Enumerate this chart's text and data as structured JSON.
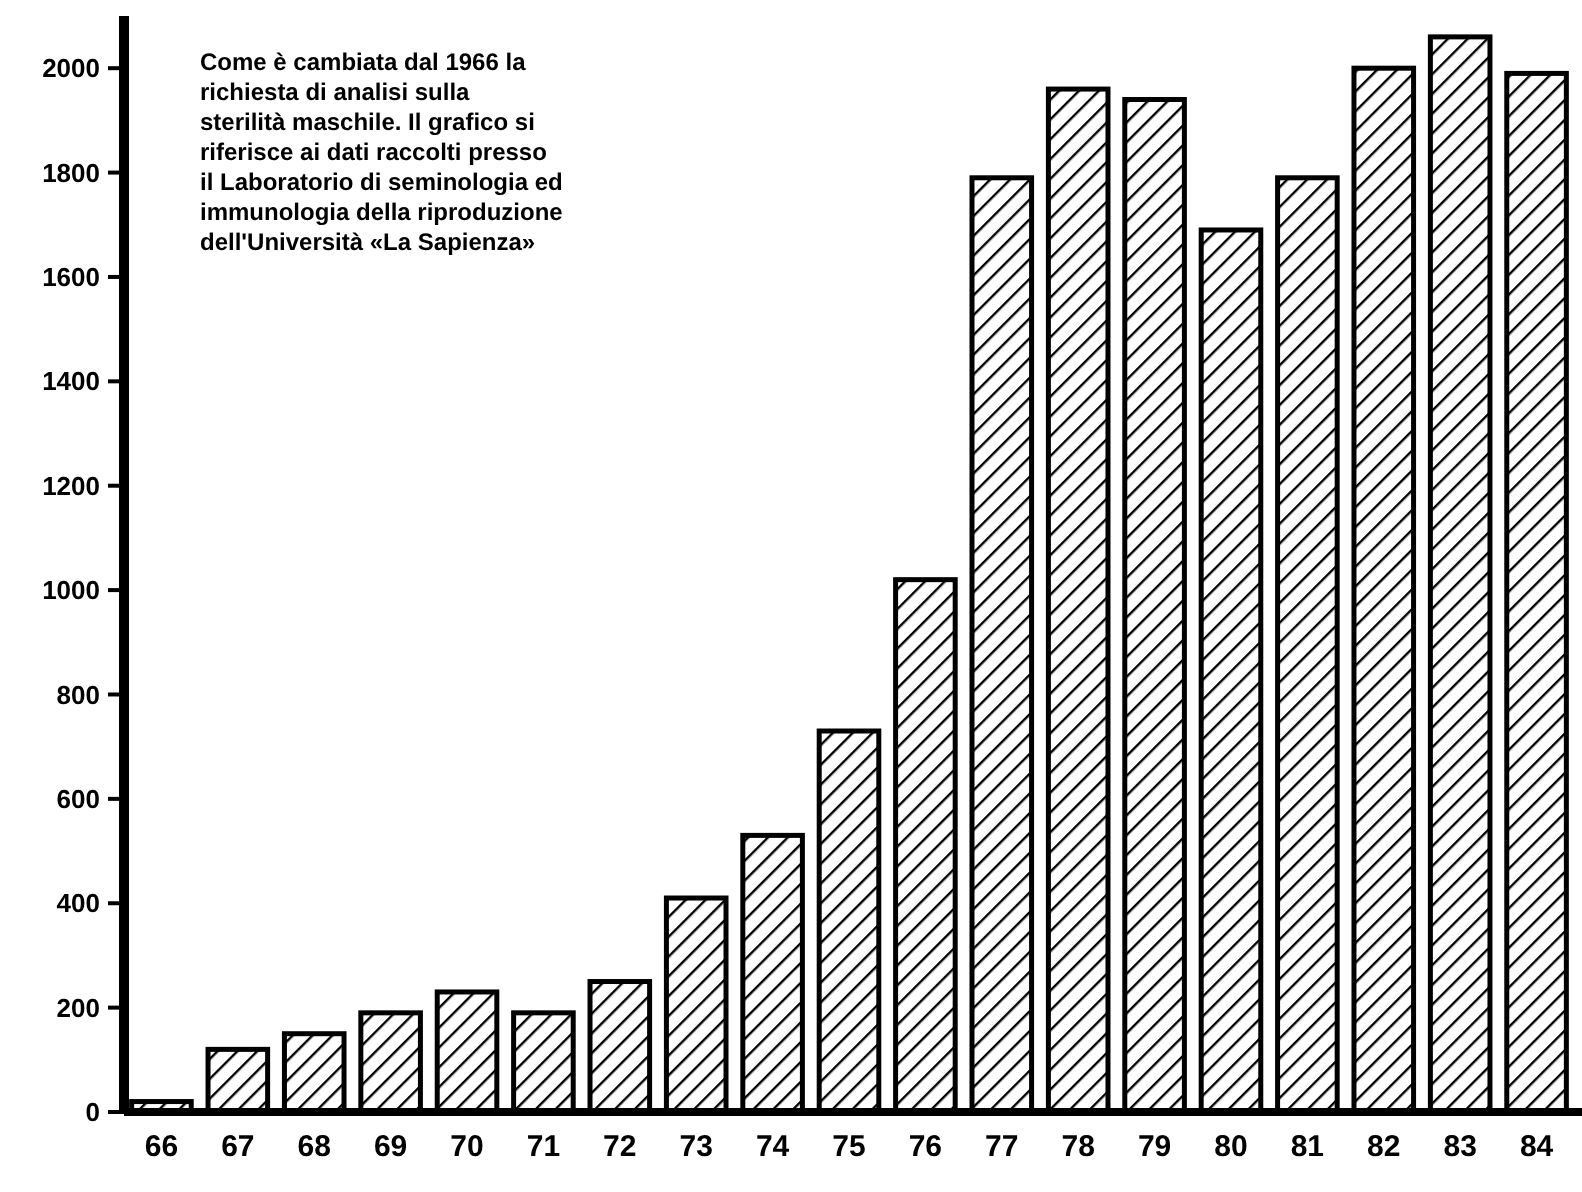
{
  "chart_data": {
    "type": "bar",
    "categories": [
      "66",
      "67",
      "68",
      "69",
      "70",
      "71",
      "72",
      "73",
      "74",
      "75",
      "76",
      "77",
      "78",
      "79",
      "80",
      "81",
      "82",
      "83",
      "84"
    ],
    "values": [
      20,
      120,
      150,
      190,
      230,
      190,
      250,
      410,
      530,
      730,
      1020,
      1790,
      1960,
      1940,
      1690,
      1790,
      2000,
      2060,
      1990
    ],
    "color": "#000000",
    "ylim": [
      0,
      2100
    ],
    "yticks": [
      0,
      200,
      400,
      600,
      800,
      1000,
      1200,
      1400,
      1600,
      1800,
      2000
    ],
    "grid": false,
    "annotations": [
      "Come è cambiata dal 1966 la richiesta di analisi sulla sterilità maschile. Il grafico si riferisce ai dati raccolti presso il Laboratorio di seminologia ed immunologia della riproduzione dell'Università «La Sapienza»"
    ]
  }
}
